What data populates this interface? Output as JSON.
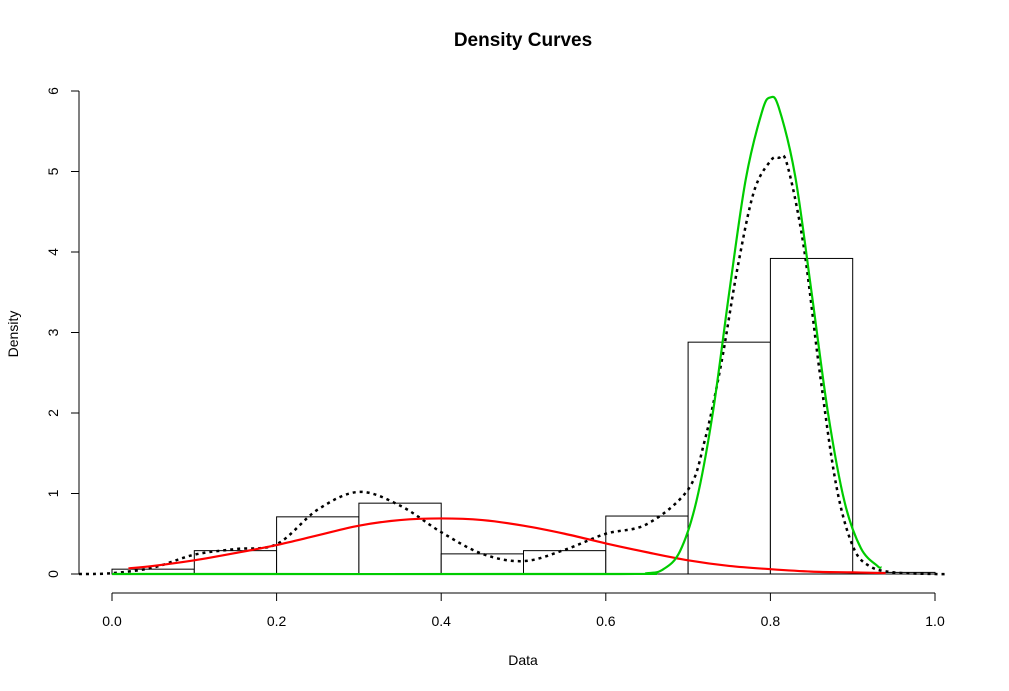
{
  "chart_data": {
    "type": "bar",
    "title": "Density Curves",
    "xlabel": "Data",
    "ylabel": "Density",
    "xlim": [
      0.0,
      1.0
    ],
    "ylim": [
      0,
      6
    ],
    "x_ticks": [
      "0.0",
      "0.2",
      "0.4",
      "0.6",
      "0.8",
      "1.0"
    ],
    "y_ticks": [
      "0",
      "1",
      "2",
      "3",
      "4",
      "5",
      "6"
    ],
    "grid": false,
    "histogram": {
      "bins": [
        {
          "start": 0.0,
          "end": 0.1,
          "density": 0.06
        },
        {
          "start": 0.1,
          "end": 0.2,
          "density": 0.29
        },
        {
          "start": 0.2,
          "end": 0.3,
          "density": 0.71
        },
        {
          "start": 0.3,
          "end": 0.4,
          "density": 0.88
        },
        {
          "start": 0.4,
          "end": 0.5,
          "density": 0.25
        },
        {
          "start": 0.5,
          "end": 0.6,
          "density": 0.29
        },
        {
          "start": 0.6,
          "end": 0.7,
          "density": 0.72
        },
        {
          "start": 0.7,
          "end": 0.8,
          "density": 2.88
        },
        {
          "start": 0.8,
          "end": 0.9,
          "density": 3.92
        },
        {
          "start": 0.9,
          "end": 1.0,
          "density": 0.02
        }
      ]
    },
    "series": [
      {
        "style": "dotted",
        "color": "#000000",
        "x": [
          -0.05,
          0.0,
          0.05,
          0.1,
          0.15,
          0.2,
          0.25,
          0.3,
          0.35,
          0.4,
          0.45,
          0.5,
          0.55,
          0.6,
          0.65,
          0.7,
          0.72,
          0.74,
          0.76,
          0.78,
          0.8,
          0.81,
          0.82,
          0.84,
          0.86,
          0.88,
          0.9,
          0.92,
          0.95,
          1.0,
          1.02
        ],
        "y": [
          0.0,
          0.01,
          0.08,
          0.24,
          0.31,
          0.37,
          0.8,
          1.02,
          0.85,
          0.52,
          0.25,
          0.16,
          0.3,
          0.5,
          0.62,
          1.05,
          1.65,
          2.6,
          3.8,
          4.75,
          5.13,
          5.17,
          5.1,
          4.1,
          2.5,
          1.1,
          0.35,
          0.1,
          0.02,
          0.0,
          0.0
        ]
      },
      {
        "style": "solid",
        "color": "#ff0000",
        "x": [
          0.02,
          0.05,
          0.1,
          0.15,
          0.2,
          0.25,
          0.3,
          0.35,
          0.4,
          0.45,
          0.5,
          0.55,
          0.6,
          0.65,
          0.7,
          0.75,
          0.8,
          0.85,
          0.9,
          0.94
        ],
        "y": [
          0.07,
          0.1,
          0.17,
          0.26,
          0.36,
          0.48,
          0.6,
          0.67,
          0.69,
          0.67,
          0.6,
          0.5,
          0.38,
          0.27,
          0.17,
          0.1,
          0.06,
          0.03,
          0.02,
          0.01
        ]
      },
      {
        "style": "solid",
        "color": "#00cc00",
        "x": [
          0.0,
          0.6,
          0.65,
          0.67,
          0.69,
          0.71,
          0.73,
          0.75,
          0.77,
          0.79,
          0.8,
          0.81,
          0.83,
          0.85,
          0.87,
          0.89,
          0.91,
          0.93,
          0.935
        ],
        "y": [
          0.0,
          0.0,
          0.01,
          0.06,
          0.28,
          0.9,
          2.0,
          3.5,
          4.9,
          5.75,
          5.92,
          5.8,
          4.95,
          3.5,
          2.0,
          0.9,
          0.32,
          0.1,
          0.08
        ]
      }
    ]
  }
}
